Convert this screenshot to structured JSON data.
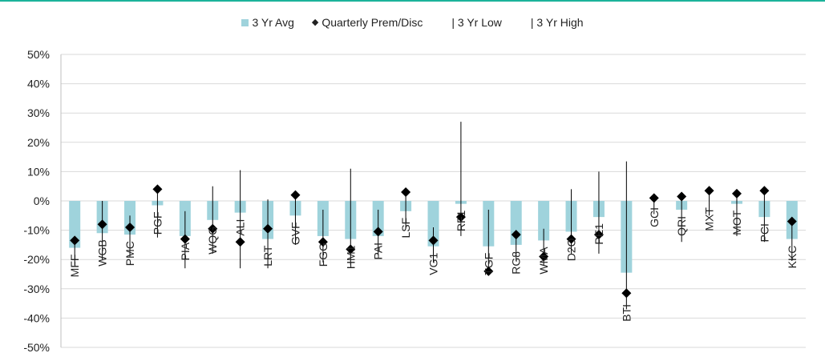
{
  "chart_data": {
    "type": "bar",
    "title": "",
    "xlabel": "",
    "ylabel": "",
    "ylim": [
      -50,
      50
    ],
    "yticks": [
      50,
      40,
      30,
      20,
      10,
      0,
      -10,
      -20,
      -30,
      -40,
      -50
    ],
    "ytick_labels": [
      "50%",
      "40%",
      "30%",
      "20%",
      "10%",
      "0%",
      "-10%",
      "-20%",
      "-30%",
      "-40%",
      "-50%"
    ],
    "legend": {
      "placement": "top-center",
      "items": [
        {
          "label": "3 Yr Avg",
          "marker": "bar"
        },
        {
          "label": "Quarterly Prem/Disc",
          "marker": "◆"
        },
        {
          "label": "| 3 Yr Low",
          "marker": "line"
        },
        {
          "label": "| 3 Yr High",
          "marker": "line"
        }
      ]
    },
    "colors": {
      "avg": "#9fd3dc",
      "prem": "#000000",
      "range": "#000000",
      "grid": "#d9d9d9",
      "accent": "#1bb39a"
    },
    "categories": [
      "MFF",
      "WGB",
      "PMC",
      "PGF",
      "PIA",
      "WQG",
      "ALI",
      "LRT",
      "GVF",
      "FGG",
      "HM1",
      "PAI",
      "LSF",
      "VG1",
      "RF1",
      "TGF",
      "RG8",
      "WMA",
      "D2O",
      "PE1",
      "BTI",
      "GCI",
      "QRI",
      "MXT",
      "MOT",
      "PCI",
      "KKC"
    ],
    "series": [
      {
        "name": "3 Yr Avg",
        "values": [
          -16,
          -11,
          -11.5,
          -1.5,
          -12,
          -6.5,
          -4,
          -13,
          -5,
          -12,
          -13,
          -12,
          -3.5,
          -15.5,
          -1,
          -15.5,
          -15,
          -13.5,
          -10.5,
          -5.5,
          -24.5,
          0,
          -3,
          0,
          -1,
          -5.5,
          -13
        ]
      },
      {
        "name": "Quarterly Prem/Disc",
        "values": [
          -13.5,
          -8,
          -9,
          4,
          -13,
          -9.5,
          -14,
          -9.5,
          2,
          -14,
          -16.5,
          -10.5,
          3,
          -13.5,
          -5.5,
          -24,
          -11.5,
          -19,
          -13,
          -11.5,
          -31.5,
          1,
          1.5,
          3.5,
          2.5,
          3.5,
          -7
        ]
      },
      {
        "name": "3 Yr Low",
        "values": [
          -22,
          -20,
          -19,
          -12.5,
          -23,
          -18,
          -23,
          -23,
          -15,
          -21,
          -22,
          -18.5,
          -9.5,
          -21,
          -12,
          -24,
          -20.5,
          -22,
          -18,
          -18,
          -37,
          -4.5,
          -14,
          -5,
          -12,
          -14,
          -20.5
        ]
      },
      {
        "name": "3 Yr High",
        "values": [
          -13.5,
          0,
          -5,
          4,
          -3.5,
          5,
          10.5,
          0.5,
          2,
          -3,
          11,
          -3,
          3,
          -9,
          27,
          -3,
          -11.5,
          -9.5,
          4,
          10,
          13.5,
          1,
          1.5,
          3.5,
          2.5,
          3.5,
          -7
        ]
      }
    ]
  }
}
